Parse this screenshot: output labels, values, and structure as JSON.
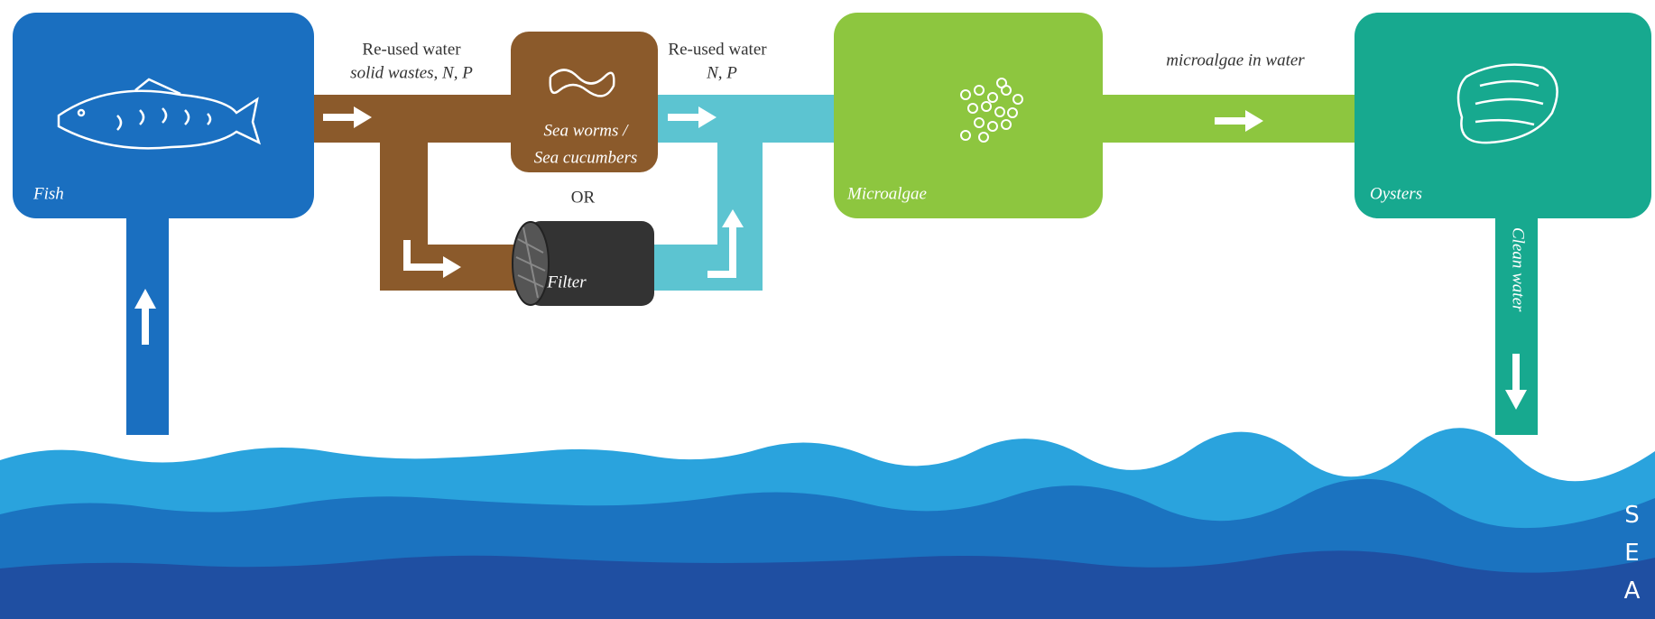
{
  "edges": [
    {
      "lines": [
        "Re-used water",
        "solid wastes, N, P"
      ]
    },
    {
      "lines": [
        "Re-used water",
        "N, P"
      ]
    },
    {
      "lines": [
        "microalgae in water"
      ]
    },
    {
      "lines": [
        "Clean water"
      ]
    }
  ],
  "nodes": [
    {
      "label": "Fish"
    },
    {
      "lines": [
        "Sea worms /",
        "Sea cucumbers"
      ]
    },
    {
      "label": "Filter"
    },
    {
      "label": "Microalgae"
    },
    {
      "label": "Oysters"
    }
  ],
  "alternative": "OR",
  "sea": "SEA"
}
